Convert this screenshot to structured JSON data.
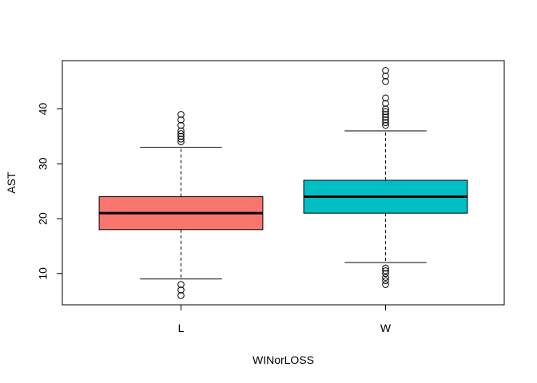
{
  "chart_data": {
    "type": "boxplot",
    "title": "",
    "xlabel": "WINorLOSS",
    "ylabel": "AST",
    "ylim": [
      4.3,
      48.8
    ],
    "yticks": [
      10,
      20,
      30,
      40
    ],
    "grid": false,
    "legend": "none",
    "categories": [
      "L",
      "W"
    ],
    "boxes": [
      {
        "category": "L",
        "color": "#F8766D",
        "whisker_low": 9,
        "q1": 18,
        "median": 21,
        "q3": 24,
        "whisker_high": 33,
        "outliers": [
          6,
          7,
          8,
          34,
          34.5,
          35,
          35.5,
          36,
          37,
          38,
          39
        ]
      },
      {
        "category": "W",
        "color": "#00BFC4",
        "whisker_low": 12,
        "q1": 21,
        "median": 24,
        "q3": 27,
        "whisker_high": 36,
        "outliers": [
          8,
          8.7,
          9.3,
          10,
          10.5,
          11,
          37,
          37.5,
          38,
          38.5,
          39,
          39.5,
          40,
          41,
          42,
          45,
          46,
          47
        ]
      }
    ]
  }
}
